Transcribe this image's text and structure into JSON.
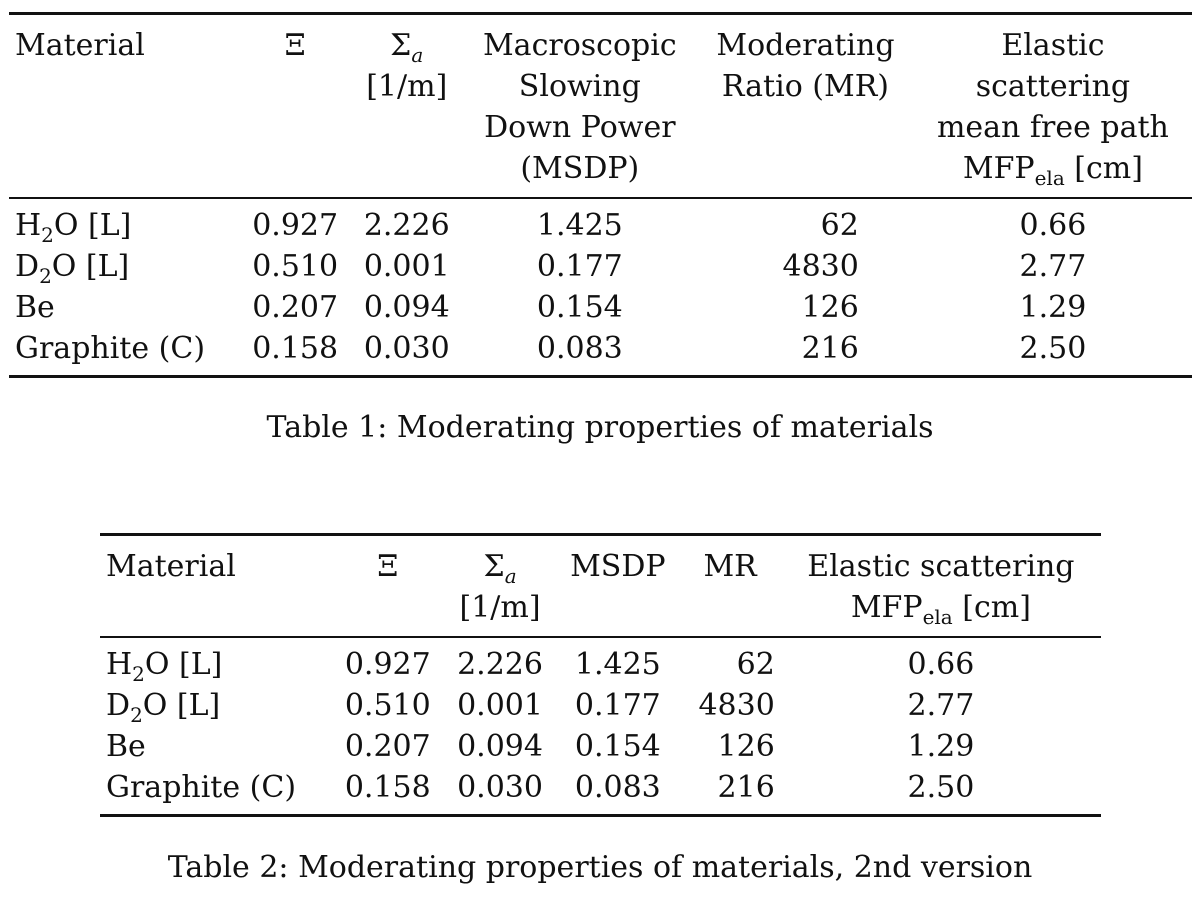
{
  "table1": {
    "headers": {
      "material": "Material",
      "xi": "Ξ",
      "sigma_symbol": "Σ",
      "sigma_sub": "a",
      "sigma_unit": "[1/m]",
      "msdp_lines": [
        "Macroscopic",
        "Slowing",
        "Down Power",
        "(MSDP)"
      ],
      "mr_lines": [
        "Moderating",
        "Ratio (MR)"
      ],
      "mfp_lines": [
        "Elastic",
        "scattering",
        "mean free path"
      ],
      "mfp_symbol": "MFP",
      "mfp_sub": "ela",
      "mfp_unit": "[cm]"
    },
    "rows": [
      {
        "name": "H",
        "sub": "2",
        "rest": "O [L]",
        "xi": "0.927",
        "sigma": "2.226",
        "msdp": "1.425",
        "mr": "62",
        "mfp": "0.66"
      },
      {
        "name": "D",
        "sub": "2",
        "rest": "O [L]",
        "xi": "0.510",
        "sigma": "0.001",
        "msdp": "0.177",
        "mr": "4830",
        "mfp": "2.77"
      },
      {
        "name": "Be",
        "sub": "",
        "rest": "",
        "xi": "0.207",
        "sigma": "0.094",
        "msdp": "0.154",
        "mr": "126",
        "mfp": "1.29"
      },
      {
        "name": "Graphite (C)",
        "sub": "",
        "rest": "",
        "xi": "0.158",
        "sigma": "0.030",
        "msdp": "0.083",
        "mr": "216",
        "mfp": "2.50"
      }
    ],
    "caption": "Table 1: Moderating properties of materials"
  },
  "table2": {
    "headers": {
      "material": "Material",
      "xi": "Ξ",
      "sigma_symbol": "Σ",
      "sigma_sub": "a",
      "sigma_unit": "[1/m]",
      "msdp": "MSDP",
      "mr": "MR",
      "mfp_line1": "Elastic scattering",
      "mfp_symbol": "MFP",
      "mfp_sub": "ela",
      "mfp_unit": "[cm]"
    },
    "rows": [
      {
        "name": "H",
        "sub": "2",
        "rest": "O [L]",
        "xi": "0.927",
        "sigma": "2.226",
        "msdp": "1.425",
        "mr": "62",
        "mfp": "0.66"
      },
      {
        "name": "D",
        "sub": "2",
        "rest": "O [L]",
        "xi": "0.510",
        "sigma": "0.001",
        "msdp": "0.177",
        "mr": "4830",
        "mfp": "2.77"
      },
      {
        "name": "Be",
        "sub": "",
        "rest": "",
        "xi": "0.207",
        "sigma": "0.094",
        "msdp": "0.154",
        "mr": "126",
        "mfp": "1.29"
      },
      {
        "name": "Graphite (C)",
        "sub": "",
        "rest": "",
        "xi": "0.158",
        "sigma": "0.030",
        "msdp": "0.083",
        "mr": "216",
        "mfp": "2.50"
      }
    ],
    "caption": "Table 2: Moderating properties of materials, 2nd version"
  }
}
